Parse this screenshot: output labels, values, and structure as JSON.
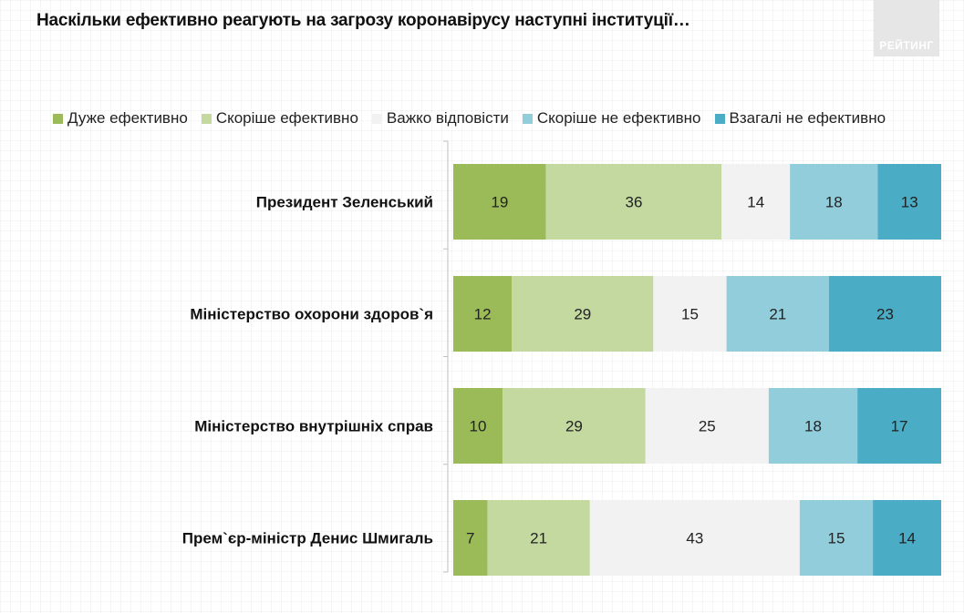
{
  "title": "Наскільки ефективно реагують на загрозу коронавірусу наступні інституції…",
  "brand": {
    "logo_text": "РЕЙТИНГ"
  },
  "legend": [
    {
      "label": "Дуже ефективно",
      "color": "#9bbb59"
    },
    {
      "label": "Скоріше ефективно",
      "color": "#c4d9a0"
    },
    {
      "label": "Важко відповісти",
      "color": "#f2f2f2"
    },
    {
      "label": "Скоріше не ефективно",
      "color": "#92cddc"
    },
    {
      "label": "Взагалі не ефективно",
      "color": "#4bacc6"
    }
  ],
  "chart_data": {
    "type": "bar",
    "orientation": "horizontal",
    "stacked": "100%",
    "title": "Наскільки ефективно реагують на загрозу коронавірусу наступні інституції…",
    "categories": [
      "Президент Зеленський",
      "Міністерство охорони здоров`я",
      "Міністерство внутрішніх справ",
      "Прем`єр-міністр Денис Шмигаль"
    ],
    "series": [
      {
        "name": "Дуже ефективно",
        "color": "#9bbb59",
        "values": [
          19,
          12,
          10,
          7
        ]
      },
      {
        "name": "Скоріше ефективно",
        "color": "#c4d9a0",
        "values": [
          36,
          29,
          29,
          21
        ]
      },
      {
        "name": "Важко відповісти",
        "color": "#f2f2f2",
        "values": [
          14,
          15,
          25,
          43
        ]
      },
      {
        "name": "Скоріше не ефективно",
        "color": "#92cddc",
        "values": [
          18,
          21,
          18,
          15
        ]
      },
      {
        "name": "Взагалі не ефективно",
        "color": "#4bacc6",
        "values": [
          13,
          23,
          17,
          14
        ]
      }
    ],
    "legend_position": "top",
    "grid": false,
    "data_labels": true
  }
}
